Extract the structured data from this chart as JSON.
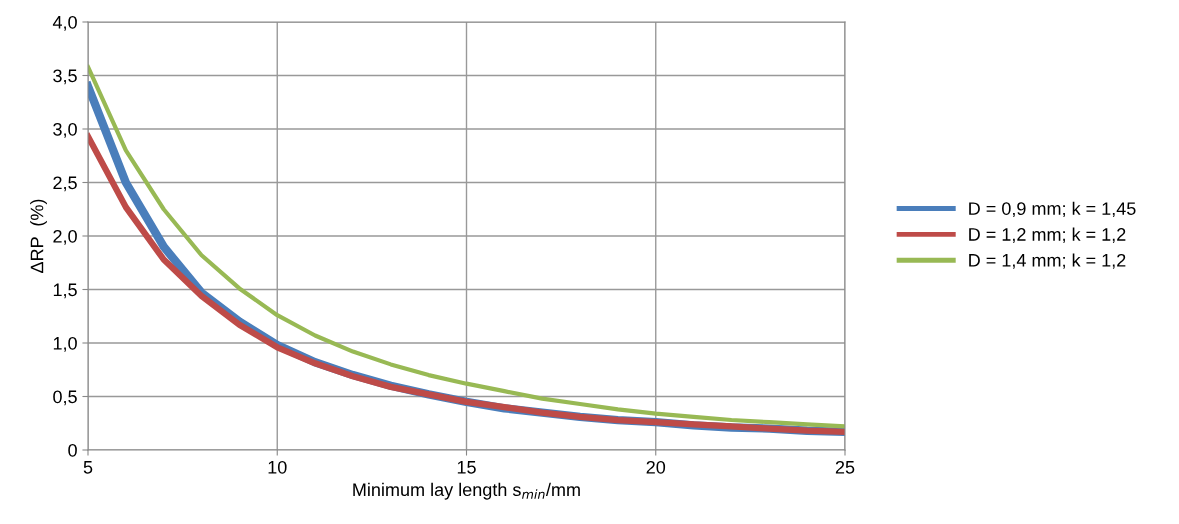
{
  "chart_data": {
    "type": "line",
    "xlabel": "Minimum lay length s$_{min}$/mm",
    "ylabel": "ΔRP  (%)",
    "x": [
      5,
      6,
      7,
      8,
      9,
      10,
      11,
      12,
      13,
      14,
      15,
      16,
      17,
      18,
      19,
      20,
      21,
      22,
      23,
      24,
      25
    ],
    "series": [
      {
        "name": "D = 0,9 mm; k = 1,45",
        "color": "#4a7ebb",
        "values": [
          3.4,
          2.5,
          1.9,
          1.47,
          1.2,
          0.98,
          0.82,
          0.7,
          0.6,
          0.52,
          0.45,
          0.39,
          0.35,
          0.31,
          0.28,
          0.26,
          0.23,
          0.21,
          0.2,
          0.18,
          0.17
        ]
      },
      {
        "name": "D = 1,2 mm; k = 1,2",
        "color": "#be4b48",
        "values": [
          2.93,
          2.27,
          1.78,
          1.44,
          1.17,
          0.96,
          0.81,
          0.69,
          0.59,
          0.52,
          0.45,
          0.4,
          0.35,
          0.31,
          0.28,
          0.26,
          0.24,
          0.22,
          0.2,
          0.18,
          0.17
        ]
      },
      {
        "name": "D = 1,4 mm; k = 1,2",
        "color": "#98b954",
        "values": [
          3.58,
          2.8,
          2.25,
          1.82,
          1.51,
          1.26,
          1.07,
          0.92,
          0.8,
          0.7,
          0.62,
          0.55,
          0.48,
          0.43,
          0.38,
          0.34,
          0.31,
          0.28,
          0.26,
          0.24,
          0.22
        ]
      }
    ],
    "xlim": [
      5,
      25
    ],
    "xticks": [
      5,
      10,
      15,
      20,
      25
    ],
    "ylim": [
      0,
      4
    ],
    "yticks": [
      0,
      {
        "value": 0.5,
        "label": "0,5"
      },
      {
        "value": 1,
        "label": "1,0"
      },
      {
        "value": 1.5,
        "label": "1,5"
      },
      {
        "value": 2,
        "label": "2,0"
      },
      {
        "value": 2.5,
        "label": "2,5"
      },
      {
        "value": 3,
        "label": "3,0"
      },
      {
        "value": 3.5,
        "label": "3,5"
      },
      {
        "value": 4,
        "label": "4,0"
      }
    ],
    "grid": true,
    "legend": "right",
    "line_style": "solid",
    "marker": "none"
  }
}
